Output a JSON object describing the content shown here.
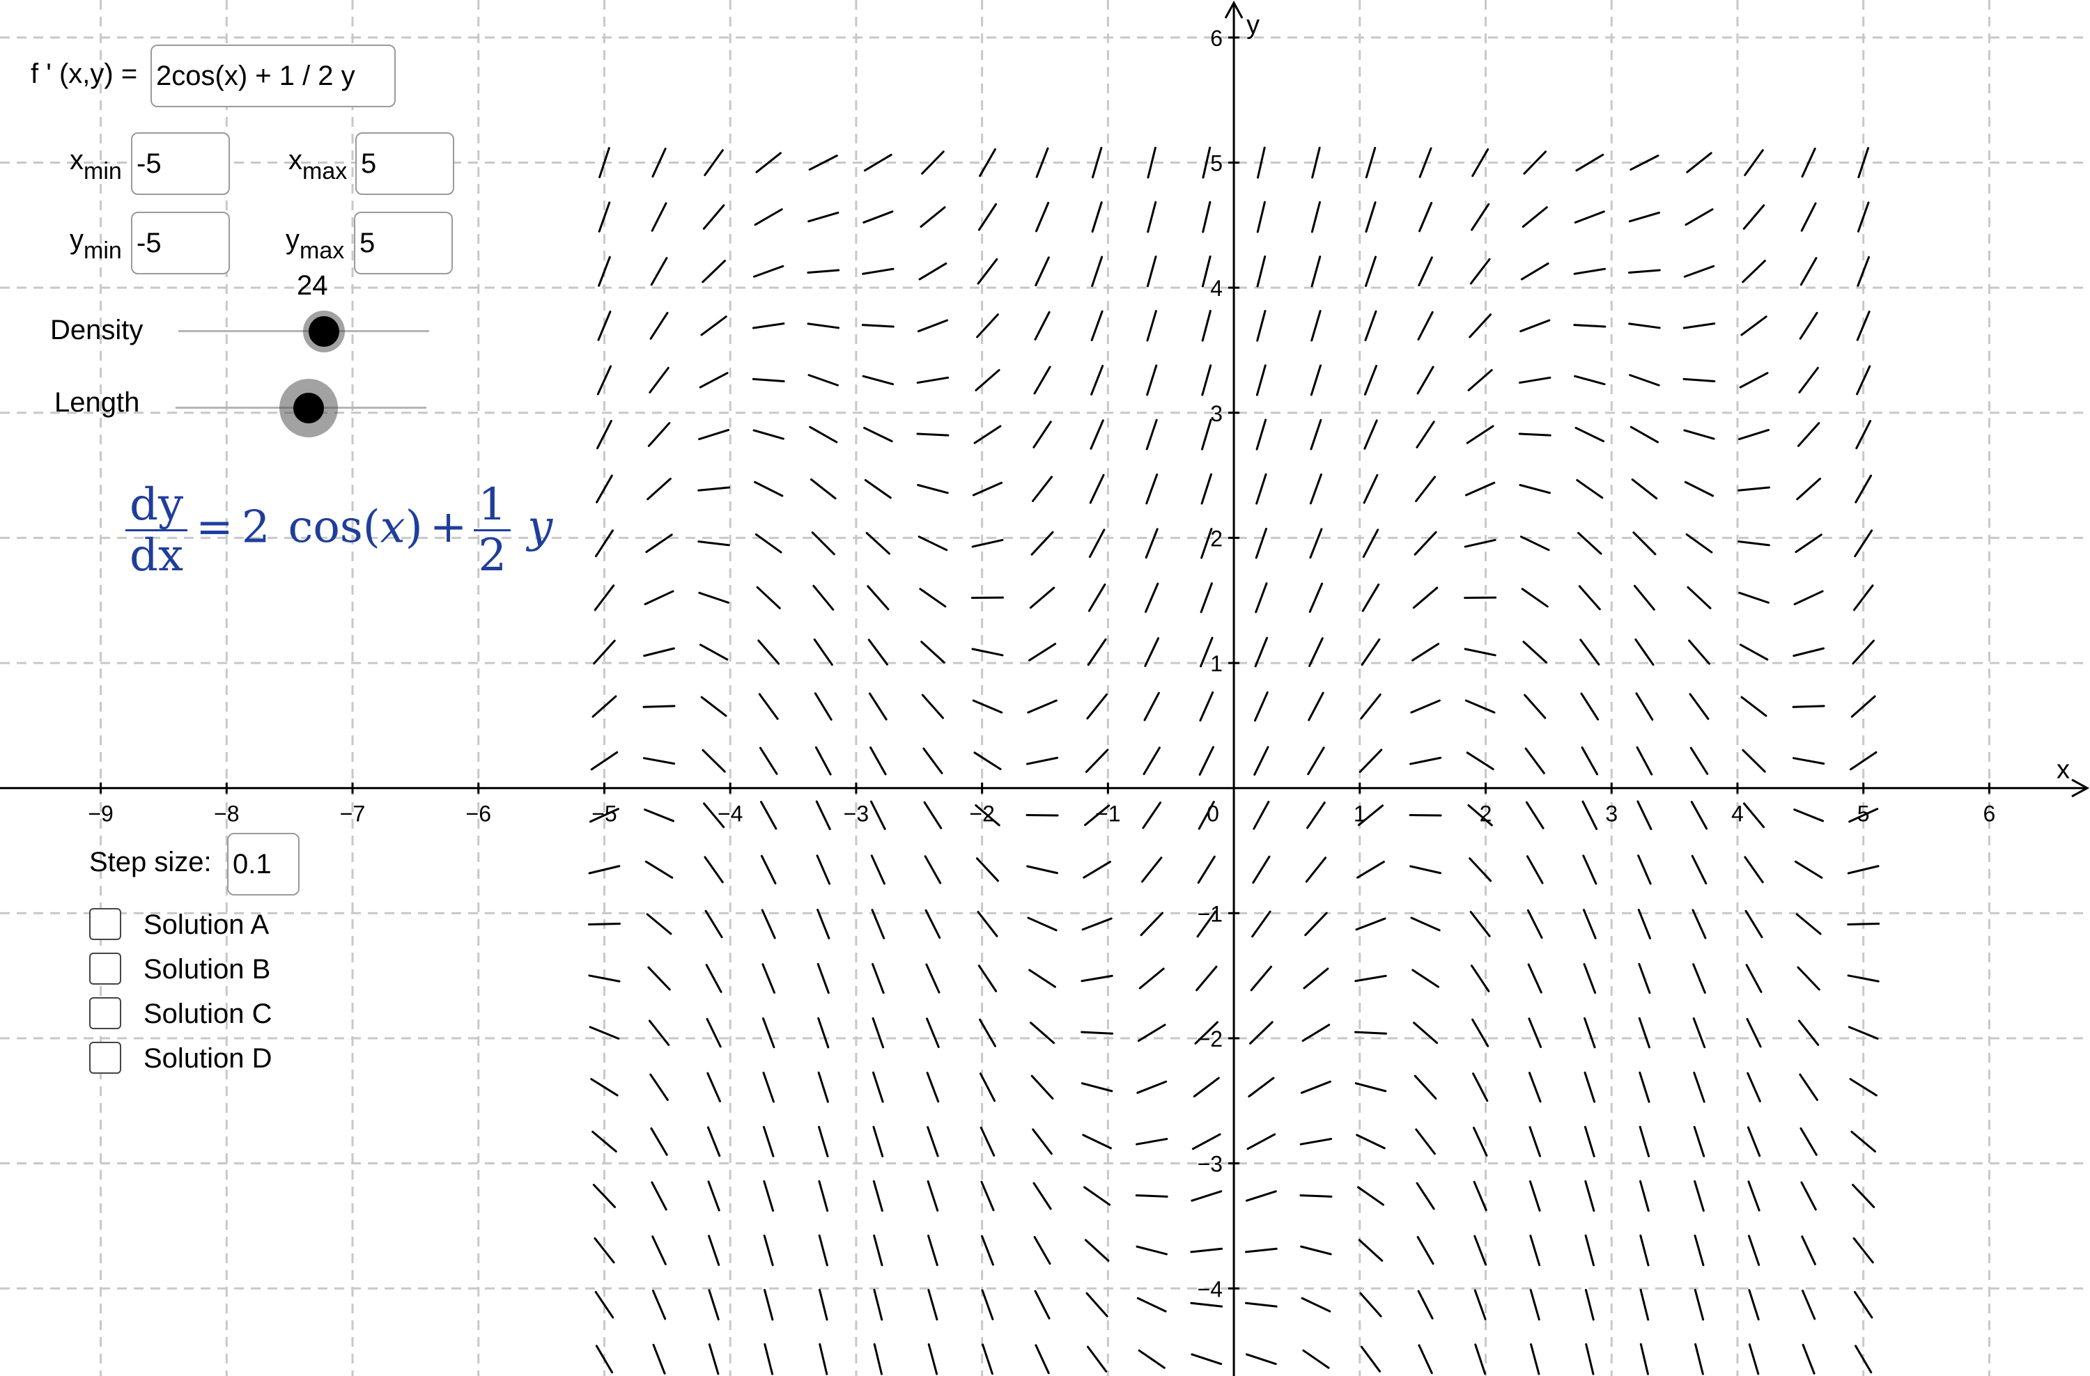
{
  "function_input": {
    "label": "f ' (x,y) =",
    "value": "2cos(x) + 1 / 2 y"
  },
  "range_inputs": {
    "xmin": {
      "label_main": "x",
      "label_sub": "min",
      "value": "-5"
    },
    "xmax": {
      "label_main": "x",
      "label_sub": "max",
      "value": "5"
    },
    "ymin": {
      "label_main": "y",
      "label_sub": "min",
      "value": "-5"
    },
    "ymax": {
      "label_main": "y",
      "label_sub": "max",
      "value": "5"
    }
  },
  "sliders": {
    "density": {
      "label": "Density",
      "value": 24,
      "value_text": "24",
      "position_fraction": 0.58
    },
    "length": {
      "label": "Length",
      "position_fraction": 0.53
    }
  },
  "equation": {
    "lhs_num": "dy",
    "lhs_den": "dx",
    "equals": "=",
    "coef": "2",
    "func": "cos(",
    "var_x": "x",
    "close": ")",
    "plus": "+",
    "half_num": "1",
    "half_den": "2",
    "var_y": "y"
  },
  "step_size": {
    "label": "Step size:",
    "value": "0.1"
  },
  "solutions": [
    {
      "label": "Solution A",
      "checked": false
    },
    {
      "label": "Solution B",
      "checked": false
    },
    {
      "label": "Solution C",
      "checked": false
    },
    {
      "label": "Solution D",
      "checked": false
    }
  ],
  "axes": {
    "x_label": "x",
    "y_label": "y",
    "x_ticks": [
      "−9",
      "−8",
      "−7",
      "−6",
      "−5",
      "−4",
      "−3",
      "−2",
      "−1",
      "0",
      "1",
      "2",
      "3",
      "4",
      "5",
      "6"
    ],
    "x_tick_values": [
      -9,
      -8,
      -7,
      -6,
      -5,
      -4,
      -3,
      -2,
      -1,
      0,
      1,
      2,
      3,
      4,
      5,
      6
    ],
    "y_ticks": [
      "−4",
      "−3",
      "−2",
      "−1",
      "1",
      "2",
      "3",
      "4",
      "5",
      "6"
    ],
    "y_tick_values": [
      -4,
      -3,
      -2,
      -1,
      1,
      2,
      3,
      4,
      5,
      6
    ],
    "x_range": [
      -9.8,
      6.8
    ],
    "y_range": [
      -4.7,
      6.3
    ],
    "grid": true
  },
  "chart_data": {
    "type": "slope-field",
    "equation": "dy/dx = 2cos(x) + 1/2 y",
    "x_domain": [
      -5,
      5
    ],
    "y_domain": [
      -5,
      5
    ],
    "density": 24,
    "grid": true
  }
}
